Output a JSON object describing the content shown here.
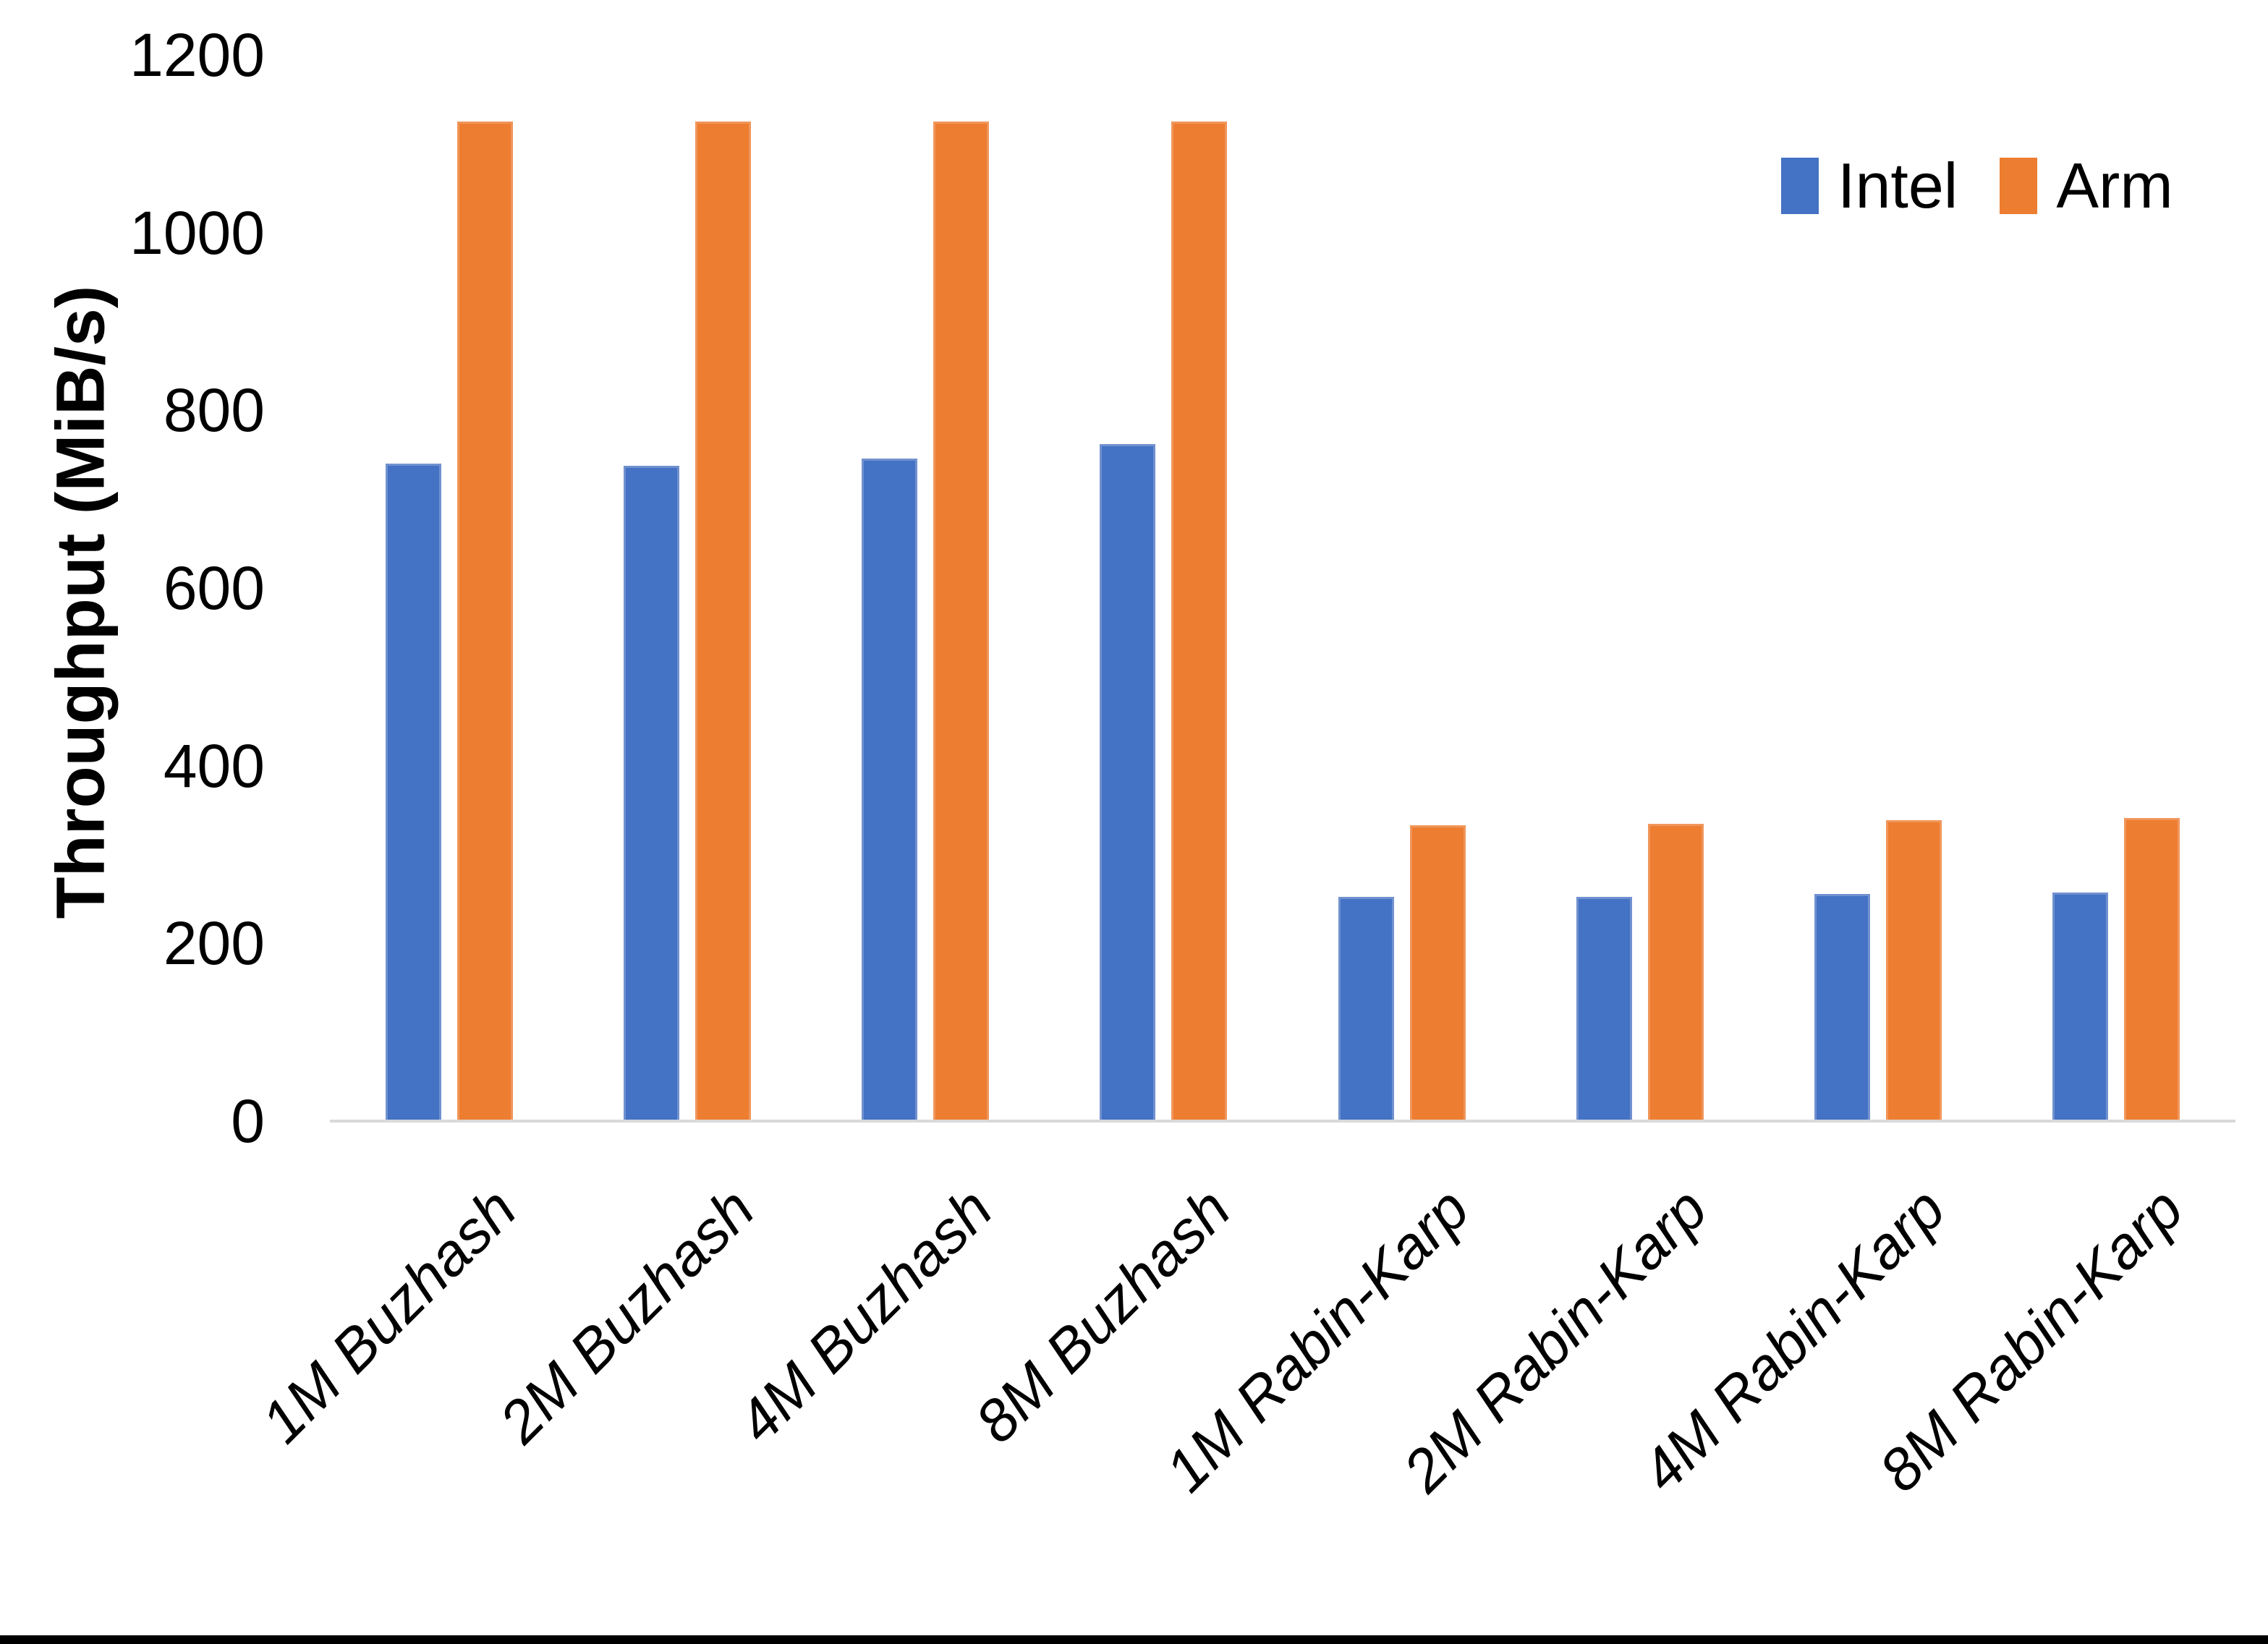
{
  "chart_data": {
    "type": "bar",
    "title": "",
    "categories": [
      "1M Buzhash",
      "2M Buzhash",
      "4M Buzhash",
      "8M Buzhash",
      "1M Rabin-Karp",
      "2M Rabin-Karp",
      "4M Rabin-Karp",
      "8M Rabin-Karp"
    ],
    "series": [
      {
        "name": "Intel",
        "color": "#4472C4",
        "edge_color": "#7191CF",
        "values": [
          740,
          738,
          746,
          762,
          252,
          252,
          256,
          257
        ]
      },
      {
        "name": "Arm",
        "color": "#ED7D31",
        "edge_color": "#F0965B",
        "values": [
          1125,
          1125,
          1125,
          1125,
          333,
          335,
          339,
          341
        ]
      }
    ],
    "xlabel": "",
    "ylabel": "Throughput (MiB/s)",
    "ylim": [
      0,
      1200
    ],
    "yticks": [
      0,
      200,
      400,
      600,
      800,
      1000,
      1200
    ],
    "grid": false,
    "legend_position": "top-right",
    "axis_line_color": "#D9D9D9"
  }
}
